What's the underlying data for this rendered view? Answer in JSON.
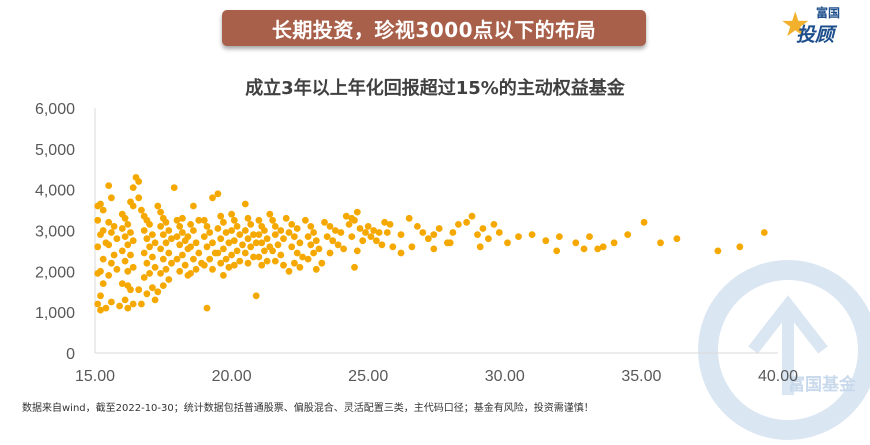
{
  "banner": {
    "text": "长期投资，珍视3000点以下的布局"
  },
  "logo": {
    "top": "富国",
    "main": "投顾"
  },
  "watermark": {
    "text": "富国基金"
  },
  "footnote": "数据来自wind，截至2022-10-30；统计数据包括普通股票、偏股混合、灵活配置三类，主代码口径；基金有风险，投资需谨慎！",
  "colors": {
    "point": "#f5a800",
    "axis": "#d9d9d9",
    "text": "#595959",
    "banner": "#a8604a"
  },
  "chart_data": {
    "type": "scatter",
    "title": "成立3年以上年化回报超过15%的主动权益基金",
    "xlabel": "",
    "ylabel": "",
    "xlim": [
      15,
      40
    ],
    "ylim": [
      0,
      6000
    ],
    "x_ticks": [
      "15.00",
      "20.00",
      "25.00",
      "30.00",
      "35.00",
      "40.00"
    ],
    "y_ticks": [
      "0",
      "1,000",
      "2,000",
      "3,000",
      "4,000",
      "5,000",
      "6,000"
    ],
    "grid": false,
    "legend": "none",
    "points": [
      [
        15.1,
        3600
      ],
      [
        15.2,
        3650
      ],
      [
        15.3,
        3500
      ],
      [
        15.1,
        3250
      ],
      [
        15.3,
        3000
      ],
      [
        15.2,
        2900
      ],
      [
        15.4,
        2700
      ],
      [
        15.1,
        2600
      ],
      [
        15.3,
        2300
      ],
      [
        15.2,
        2000
      ],
      [
        15.1,
        1950
      ],
      [
        15.3,
        1700
      ],
      [
        15.2,
        1400
      ],
      [
        15.1,
        1200
      ],
      [
        15.4,
        1100
      ],
      [
        15.2,
        1050
      ],
      [
        15.5,
        4100
      ],
      [
        15.6,
        3800
      ],
      [
        15.5,
        3200
      ],
      [
        15.7,
        3100
      ],
      [
        15.6,
        2950
      ],
      [
        15.8,
        2800
      ],
      [
        15.5,
        2650
      ],
      [
        15.7,
        2400
      ],
      [
        15.6,
        2200
      ],
      [
        15.8,
        2050
      ],
      [
        15.5,
        1900
      ],
      [
        15.6,
        1250
      ],
      [
        15.9,
        1150
      ],
      [
        16.0,
        3400
      ],
      [
        16.1,
        3300
      ],
      [
        16.2,
        3150
      ],
      [
        16.0,
        3050
      ],
      [
        16.3,
        2950
      ],
      [
        16.1,
        2850
      ],
      [
        16.4,
        2750
      ],
      [
        16.2,
        2650
      ],
      [
        16.0,
        2500
      ],
      [
        16.3,
        2400
      ],
      [
        16.1,
        2250
      ],
      [
        16.4,
        2100
      ],
      [
        16.2,
        2000
      ],
      [
        16.0,
        1700
      ],
      [
        16.3,
        1550
      ],
      [
        16.1,
        1300
      ],
      [
        16.4,
        1200
      ],
      [
        16.2,
        1100
      ],
      [
        16.4,
        3600
      ],
      [
        16.5,
        4300
      ],
      [
        16.6,
        4200
      ],
      [
        16.4,
        4050
      ],
      [
        16.3,
        3700
      ],
      [
        16.7,
        3500
      ],
      [
        16.8,
        3350
      ],
      [
        16.9,
        3250
      ],
      [
        17.0,
        3150
      ],
      [
        16.8,
        3000
      ],
      [
        17.1,
        2900
      ],
      [
        16.9,
        2800
      ],
      [
        17.2,
        2700
      ],
      [
        17.0,
        2600
      ],
      [
        16.8,
        2450
      ],
      [
        17.1,
        2350
      ],
      [
        16.9,
        2200
      ],
      [
        17.2,
        2100
      ],
      [
        17.0,
        1950
      ],
      [
        16.8,
        1850
      ],
      [
        17.1,
        1600
      ],
      [
        16.9,
        1450
      ],
      [
        17.2,
        1300
      ],
      [
        16.7,
        1200
      ],
      [
        17.3,
        3600
      ],
      [
        16.6,
        3800
      ],
      [
        17.4,
        3450
      ],
      [
        17.5,
        3300
      ],
      [
        17.6,
        3200
      ],
      [
        17.4,
        3100
      ],
      [
        17.7,
        3000
      ],
      [
        17.5,
        2900
      ],
      [
        17.8,
        2800
      ],
      [
        17.6,
        2700
      ],
      [
        17.4,
        2550
      ],
      [
        17.7,
        2450
      ],
      [
        17.5,
        2300
      ],
      [
        17.8,
        2200
      ],
      [
        17.6,
        2050
      ],
      [
        17.4,
        1950
      ],
      [
        17.7,
        1800
      ],
      [
        17.5,
        1650
      ],
      [
        17.3,
        1500
      ],
      [
        16.6,
        1550
      ],
      [
        16.2,
        1650
      ],
      [
        17.9,
        4050
      ],
      [
        18.0,
        3250
      ],
      [
        18.1,
        3100
      ],
      [
        18.2,
        2950
      ],
      [
        18.0,
        2850
      ],
      [
        18.3,
        2750
      ],
      [
        18.1,
        2650
      ],
      [
        18.4,
        2550
      ],
      [
        18.2,
        2400
      ],
      [
        18.0,
        2300
      ],
      [
        18.3,
        2150
      ],
      [
        18.1,
        2000
      ],
      [
        18.4,
        1900
      ],
      [
        18.2,
        3300
      ],
      [
        18.5,
        3150
      ],
      [
        18.6,
        3000
      ],
      [
        18.4,
        2850
      ],
      [
        18.7,
        2700
      ],
      [
        18.5,
        2600
      ],
      [
        18.8,
        2450
      ],
      [
        18.6,
        2300
      ],
      [
        18.9,
        2200
      ],
      [
        18.7,
        2050
      ],
      [
        18.5,
        1950
      ],
      [
        18.8,
        3250
      ],
      [
        18.6,
        3600
      ],
      [
        19.0,
        3250
      ],
      [
        19.1,
        3100
      ],
      [
        19.2,
        2950
      ],
      [
        19.0,
        2850
      ],
      [
        19.3,
        2700
      ],
      [
        19.1,
        2600
      ],
      [
        19.4,
        2450
      ],
      [
        19.2,
        2300
      ],
      [
        19.0,
        2150
      ],
      [
        19.3,
        2050
      ],
      [
        19.1,
        1100
      ],
      [
        19.3,
        3800
      ],
      [
        19.5,
        3900
      ],
      [
        19.6,
        3350
      ],
      [
        19.7,
        3200
      ],
      [
        19.5,
        3050
      ],
      [
        19.8,
        2950
      ],
      [
        19.6,
        2800
      ],
      [
        19.9,
        2700
      ],
      [
        19.7,
        2550
      ],
      [
        19.5,
        2450
      ],
      [
        19.8,
        2300
      ],
      [
        19.6,
        2200
      ],
      [
        19.9,
        2100
      ],
      [
        19.7,
        1900
      ],
      [
        20.0,
        3400
      ],
      [
        20.1,
        3250
      ],
      [
        20.2,
        3100
      ],
      [
        20.0,
        3000
      ],
      [
        20.3,
        2900
      ],
      [
        20.1,
        2750
      ],
      [
        20.4,
        2650
      ],
      [
        20.2,
        2500
      ],
      [
        20.0,
        2400
      ],
      [
        20.3,
        2250
      ],
      [
        20.1,
        2150
      ],
      [
        20.5,
        3650
      ],
      [
        20.6,
        3300
      ],
      [
        20.7,
        3150
      ],
      [
        20.5,
        3000
      ],
      [
        20.8,
        2900
      ],
      [
        20.6,
        2800
      ],
      [
        20.9,
        2700
      ],
      [
        20.7,
        2600
      ],
      [
        20.5,
        2450
      ],
      [
        20.8,
        2350
      ],
      [
        20.6,
        2200
      ],
      [
        20.9,
        1400
      ],
      [
        21.0,
        3250
      ],
      [
        21.1,
        3100
      ],
      [
        21.2,
        3000
      ],
      [
        21.0,
        2900
      ],
      [
        21.3,
        2800
      ],
      [
        21.1,
        2700
      ],
      [
        21.4,
        2600
      ],
      [
        21.2,
        2500
      ],
      [
        21.0,
        2350
      ],
      [
        21.3,
        2250
      ],
      [
        21.1,
        2150
      ],
      [
        21.4,
        3400
      ],
      [
        21.5,
        3250
      ],
      [
        21.6,
        3100
      ],
      [
        21.8,
        3000
      ],
      [
        21.6,
        2900
      ],
      [
        21.9,
        2800
      ],
      [
        21.7,
        2650
      ],
      [
        21.5,
        2500
      ],
      [
        21.8,
        2400
      ],
      [
        21.6,
        2250
      ],
      [
        21.9,
        2150
      ],
      [
        22.0,
        3300
      ],
      [
        22.2,
        3150
      ],
      [
        22.4,
        3050
      ],
      [
        22.1,
        2950
      ],
      [
        22.3,
        2850
      ],
      [
        22.5,
        2700
      ],
      [
        22.2,
        2600
      ],
      [
        22.4,
        2450
      ],
      [
        22.6,
        2350
      ],
      [
        22.3,
        2200
      ],
      [
        22.5,
        2100
      ],
      [
        22.1,
        2000
      ],
      [
        22.7,
        3250
      ],
      [
        22.9,
        3100
      ],
      [
        23.0,
        2950
      ],
      [
        22.8,
        2850
      ],
      [
        23.1,
        2750
      ],
      [
        22.9,
        2650
      ],
      [
        23.2,
        2550
      ],
      [
        23.0,
        2450
      ],
      [
        22.8,
        2300
      ],
      [
        23.3,
        2200
      ],
      [
        23.1,
        2050
      ],
      [
        23.4,
        3200
      ],
      [
        23.6,
        3100
      ],
      [
        23.8,
        3000
      ],
      [
        24.0,
        2950
      ],
      [
        23.5,
        2850
      ],
      [
        23.7,
        2750
      ],
      [
        23.9,
        2650
      ],
      [
        24.1,
        2550
      ],
      [
        23.6,
        2450
      ],
      [
        24.2,
        3350
      ],
      [
        24.4,
        3300
      ],
      [
        24.6,
        3450
      ],
      [
        24.5,
        3250
      ],
      [
        24.3,
        3150
      ],
      [
        24.7,
        3050
      ],
      [
        24.9,
        2950
      ],
      [
        24.4,
        2850
      ],
      [
        24.8,
        2750
      ],
      [
        24.6,
        2500
      ],
      [
        24.5,
        2100
      ],
      [
        25.0,
        3100
      ],
      [
        25.2,
        3000
      ],
      [
        25.4,
        2950
      ],
      [
        25.1,
        2850
      ],
      [
        25.3,
        2750
      ],
      [
        25.5,
        2650
      ],
      [
        25.6,
        3200
      ],
      [
        25.8,
        3150
      ],
      [
        25.7,
        2950
      ],
      [
        25.9,
        2600
      ],
      [
        26.2,
        2900
      ],
      [
        26.5,
        3300
      ],
      [
        26.8,
        3100
      ],
      [
        27.0,
        2950
      ],
      [
        27.2,
        2800
      ],
      [
        27.4,
        2900
      ],
      [
        27.6,
        3050
      ],
      [
        27.9,
        2700
      ],
      [
        28.1,
        2950
      ],
      [
        28.3,
        3150
      ],
      [
        28.6,
        3200
      ],
      [
        28.8,
        3350
      ],
      [
        29.0,
        2900
      ],
      [
        29.2,
        3050
      ],
      [
        29.4,
        2800
      ],
      [
        29.6,
        3150
      ],
      [
        29.8,
        2950
      ],
      [
        30.1,
        2700
      ],
      [
        30.5,
        2850
      ],
      [
        31.0,
        2900
      ],
      [
        31.5,
        2750
      ],
      [
        32.0,
        2850
      ],
      [
        32.6,
        2700
      ],
      [
        32.9,
        2550
      ],
      [
        33.1,
        2850
      ],
      [
        33.4,
        2550
      ],
      [
        34.0,
        2700
      ],
      [
        34.5,
        2900
      ],
      [
        35.1,
        3200
      ],
      [
        35.7,
        2700
      ],
      [
        36.3,
        2800
      ],
      [
        37.8,
        2500
      ],
      [
        38.6,
        2600
      ],
      [
        39.5,
        2950
      ],
      [
        33.6,
        2600
      ],
      [
        31.9,
        2500
      ],
      [
        29.1,
        2600
      ],
      [
        28.0,
        2700
      ],
      [
        27.4,
        2550
      ],
      [
        26.6,
        2600
      ],
      [
        26.2,
        2450
      ]
    ]
  }
}
